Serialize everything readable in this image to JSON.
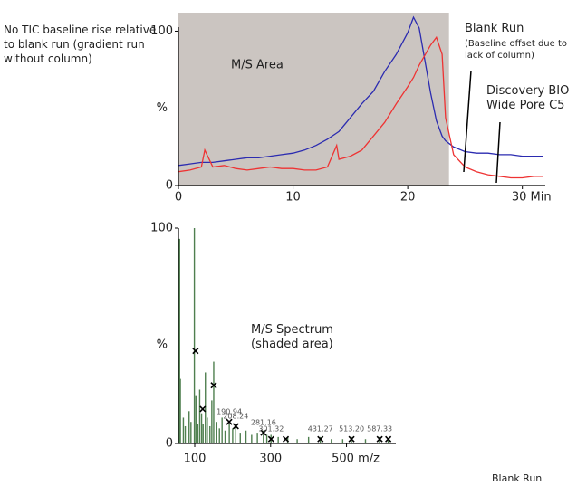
{
  "annotation": "No TIC baseline rise relative to blank run (gradient run without column)",
  "footer": "Blank Run",
  "chart_data": [
    {
      "type": "line",
      "y_label": "%",
      "area_label": "M/S Area",
      "shaded_xlim": [
        0,
        23.6
      ],
      "shade_color": "#cbc5c1",
      "xlim": [
        0,
        32
      ],
      "ylim": [
        0,
        112
      ],
      "xticks": [
        0,
        10,
        20,
        {
          "value": 30,
          "label": "30 Min"
        }
      ],
      "yticks": [
        0,
        100
      ],
      "x": [
        0,
        1,
        2,
        2.3,
        3,
        4,
        5,
        6,
        7,
        8,
        9,
        10,
        11,
        12,
        13,
        13.8,
        14,
        15,
        16,
        17,
        18,
        19,
        20,
        20.5,
        21,
        22,
        22.5,
        23,
        23.3,
        24,
        25,
        26,
        27,
        28,
        29,
        30,
        31,
        31.8
      ],
      "series": [
        {
          "name": "Blank Run",
          "note": "(Baseline offset due to lack of column)",
          "color": "#2b2bb0",
          "values": [
            13,
            14,
            15,
            15,
            15,
            16,
            17,
            18,
            18,
            19,
            20,
            21,
            23,
            26,
            30,
            34,
            35,
            44,
            53,
            61,
            74,
            85,
            99,
            109,
            102,
            60,
            42,
            32,
            29,
            25,
            22,
            21,
            21,
            20,
            20,
            19,
            19,
            19
          ]
        },
        {
          "name": "Discovery BIO Wide Pore C5",
          "color": "#ee3333",
          "values": [
            9,
            10,
            12,
            23,
            12,
            13,
            11,
            10,
            11,
            12,
            11,
            11,
            10,
            10,
            12,
            26,
            17,
            19,
            23,
            32,
            41,
            53,
            64,
            70,
            78,
            91,
            96,
            85,
            44,
            20,
            12,
            9,
            7,
            6,
            5,
            5,
            6,
            6
          ]
        }
      ]
    },
    {
      "type": "stem",
      "y_label": "%",
      "label": "M/S Spectrum (shaded area)",
      "color": "#4f7f4f",
      "xlim": [
        57,
        630
      ],
      "ylim": [
        0,
        100
      ],
      "xticks": [
        100,
        300,
        {
          "value": 500,
          "label": "500 m/z"
        }
      ],
      "yticks": [
        0,
        100
      ],
      "x": [
        60,
        62,
        70,
        75,
        85,
        90,
        99,
        103,
        108,
        113,
        118,
        122,
        128,
        133,
        140,
        145,
        150,
        158,
        165,
        172,
        180,
        191,
        200,
        208,
        220,
        235,
        250,
        265,
        281,
        290,
        301,
        320,
        345,
        370,
        400,
        431,
        460,
        490,
        513,
        550,
        587,
        610
      ],
      "values": [
        95,
        30,
        12,
        8,
        15,
        10,
        100,
        22,
        9,
        25,
        14,
        9,
        33,
        12,
        8,
        20,
        38,
        10,
        7,
        12,
        6,
        9,
        7,
        8,
        5,
        6,
        4,
        5,
        6,
        4,
        4,
        3,
        3,
        2,
        3,
        3,
        2,
        2,
        3,
        2,
        3,
        2
      ],
      "markers": {
        "x": [
          102,
          121,
          150,
          190.94,
          208.24,
          281.16,
          301.32,
          340,
          431.27,
          513.2,
          587.33,
          610
        ],
        "values": [
          43,
          16,
          27,
          10,
          8,
          5,
          2,
          2,
          2,
          2,
          2,
          2
        ],
        "labels": [
          null,
          null,
          null,
          "190.94",
          "208.24",
          "281.16",
          "301.32",
          null,
          "431.27",
          "513.20",
          "587.33",
          null
        ]
      }
    }
  ]
}
